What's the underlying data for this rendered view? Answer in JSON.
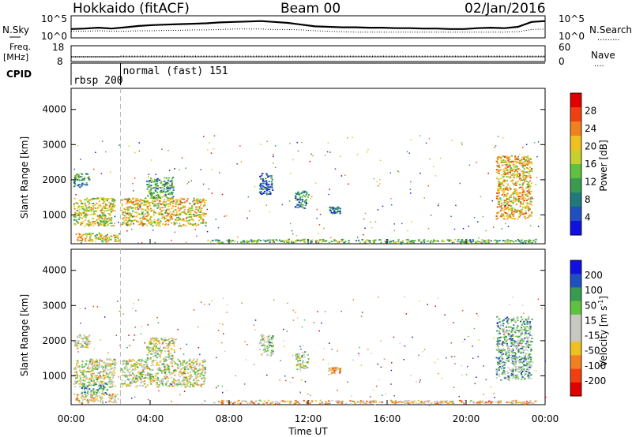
{
  "header": {
    "station": "Hokkaido (fitACF)",
    "beam": "Beam 00",
    "date": "02/Jan/2016"
  },
  "strips": {
    "nsky": {
      "label": "N.Sky",
      "left_ticks": [
        "10^5",
        "10^0"
      ],
      "right_ticks": [
        "10^5",
        "10^0"
      ],
      "right_label": "N.Search",
      "right_legend": ".........",
      "solid_profile": [
        2,
        2.1,
        2.3,
        2.1,
        2.4,
        2.7,
        2.9,
        3.0,
        3.1,
        3.2,
        3.3,
        3.5,
        3.6,
        3.7,
        3.8,
        3.6,
        3.4,
        3.0,
        2.6,
        2.5,
        2.4,
        2.4,
        2.3,
        2.3,
        2.2,
        2.2,
        2.1,
        2.1,
        2.0,
        2.0,
        2.2,
        2.3,
        2.2,
        2.5,
        3.6,
        3.8
      ],
      "search_profile": [
        1.5,
        1.5,
        1.6,
        1.5,
        1.5,
        1.6,
        1.6,
        1.7,
        1.7,
        1.8,
        1.8,
        1.9,
        2.0,
        2.0,
        2.0,
        1.9,
        1.9,
        1.8,
        1.6,
        1.5,
        1.4,
        1.3,
        1.3,
        1.3,
        1.3,
        1.3,
        1.3,
        1.3,
        1.3,
        1.3,
        1.3,
        1.3,
        1.3,
        1.4,
        1.9,
        2.0
      ]
    },
    "freq": {
      "label_1": "Freq.",
      "label_2": "[MHz]",
      "left_ticks": [
        "18",
        "8"
      ],
      "right_ticks": [
        "60",
        "0"
      ],
      "right_label": "Nave",
      "right_legend": "....",
      "freq_before": 11.0,
      "freq_after": 11.4,
      "nave": 18
    },
    "cpid": {
      "label": "CPID",
      "segments": [
        {
          "label": "rbsp 200",
          "start_hour": 0.0,
          "end_hour": 2.5
        },
        {
          "label": "normal (fast) 151",
          "start_hour": 2.5,
          "end_hour": 24.0
        }
      ]
    }
  },
  "axes": {
    "ylabel": "Slant Range [km]",
    "yticks": [
      "1000",
      "2000",
      "3000",
      "4000"
    ],
    "xticks": [
      "00:00",
      "04:00",
      "08:00",
      "12:00",
      "16:00",
      "20:00",
      "00:00"
    ],
    "xlabel": "Time UT"
  },
  "colorbars": {
    "power": {
      "label": "Power [dB]",
      "ticks": [
        "4",
        "8",
        "12",
        "16",
        "20",
        "24",
        "28"
      ]
    },
    "velocity": {
      "label_main": "Velocity [m s",
      "label_sup": "-1",
      "label_end": "]",
      "ticks": [
        "200",
        "100",
        "50",
        "15",
        "-15",
        "-50",
        "-100",
        "-200"
      ]
    }
  },
  "chart_data": [
    {
      "type": "heatmap",
      "title": "Power",
      "x_units": "hours UT",
      "y_units": "km",
      "xlim": [
        0,
        24
      ],
      "ylim": [
        180,
        4600
      ],
      "colorbar_range": [
        2,
        32
      ],
      "colors": [
        "#1010e0",
        "#2050c0",
        "#207a7a",
        "#3a9a50",
        "#60c040",
        "#c8d030",
        "#f0c020",
        "#f08020",
        "#f04010",
        "#e00000"
      ],
      "regions": [
        {
          "t0": 0.1,
          "t1": 2.2,
          "r0": 700,
          "r1": 1500,
          "level": 0.55
        },
        {
          "t0": 0.1,
          "t1": 0.9,
          "r0": 1800,
          "r1": 2200,
          "level": 0.35
        },
        {
          "t0": 0.2,
          "t1": 2.4,
          "r0": 250,
          "r1": 500,
          "level": 0.6
        },
        {
          "t0": 2.5,
          "t1": 6.8,
          "r0": 700,
          "r1": 1500,
          "level": 0.6
        },
        {
          "t0": 3.8,
          "t1": 5.2,
          "r0": 1500,
          "r1": 2100,
          "level": 0.35
        },
        {
          "t0": 6.8,
          "t1": 23.5,
          "r0": 220,
          "r1": 320,
          "level": 0.4
        },
        {
          "t0": 11.3,
          "t1": 12.0,
          "r0": 1200,
          "r1": 1700,
          "level": 0.25
        },
        {
          "t0": 13.0,
          "t1": 13.6,
          "r0": 1050,
          "r1": 1250,
          "level": 0.25
        },
        {
          "t0": 21.5,
          "t1": 23.3,
          "r0": 900,
          "r1": 2700,
          "level": 0.65
        },
        {
          "t0": 9.5,
          "t1": 10.2,
          "r0": 1600,
          "r1": 2200,
          "level": 0.2
        }
      ]
    },
    {
      "type": "heatmap",
      "title": "Velocity",
      "x_units": "hours UT",
      "y_units": "km",
      "xlim": [
        0,
        24
      ],
      "ylim": [
        180,
        4600
      ],
      "colorbar_range": [
        -250,
        250
      ],
      "colors": [
        "#e00000",
        "#f04010",
        "#f08020",
        "#f0c020",
        "#c8c8c0",
        "#c8c8c0",
        "#60c040",
        "#3a9a50",
        "#2050c0",
        "#1010e0"
      ],
      "regions": [
        {
          "t0": 0.1,
          "t1": 2.2,
          "r0": 700,
          "r1": 1500,
          "level": 0.5
        },
        {
          "t0": 0.1,
          "t1": 0.9,
          "r0": 1800,
          "r1": 2200,
          "level": 0.5
        },
        {
          "t0": 0.5,
          "t1": 1.8,
          "r0": 500,
          "r1": 800,
          "level": 0.65
        },
        {
          "t0": 0.2,
          "t1": 2.4,
          "r0": 250,
          "r1": 500,
          "level": 0.45
        },
        {
          "t0": 2.5,
          "t1": 6.8,
          "r0": 700,
          "r1": 1500,
          "level": 0.5
        },
        {
          "t0": 3.8,
          "t1": 5.2,
          "r0": 1500,
          "r1": 2100,
          "level": 0.5
        },
        {
          "t0": 6.8,
          "t1": 23.5,
          "r0": 220,
          "r1": 320,
          "level": 0.38
        },
        {
          "t0": 11.3,
          "t1": 12.0,
          "r0": 1200,
          "r1": 1700,
          "level": 0.55
        },
        {
          "t0": 13.0,
          "t1": 13.6,
          "r0": 1050,
          "r1": 1250,
          "level": 0.35
        },
        {
          "t0": 21.5,
          "t1": 23.3,
          "r0": 900,
          "r1": 2700,
          "level": 0.65
        },
        {
          "t0": 9.5,
          "t1": 10.2,
          "r0": 1600,
          "r1": 2200,
          "level": 0.6
        }
      ]
    }
  ]
}
